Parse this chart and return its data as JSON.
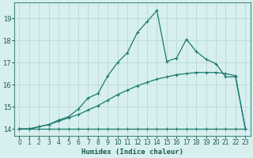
{
  "xlabel": "Humidex (Indice chaleur)",
  "bg_color": "#d7efef",
  "grid_color": "#b8d8d8",
  "line_color": "#1a7a6e",
  "xlim": [
    -0.5,
    23.5
  ],
  "ylim": [
    13.7,
    19.7
  ],
  "yticks": [
    14,
    15,
    16,
    17,
    18,
    19
  ],
  "xticks": [
    0,
    1,
    2,
    3,
    4,
    5,
    6,
    7,
    8,
    9,
    10,
    11,
    12,
    13,
    14,
    15,
    16,
    17,
    18,
    19,
    20,
    21,
    22,
    23
  ],
  "line1_x": [
    0,
    1,
    2,
    3,
    4,
    5,
    6,
    7,
    8,
    9,
    10,
    11,
    12,
    13,
    14,
    15,
    16,
    17,
    18,
    19,
    20,
    21,
    22,
    23
  ],
  "line1_y": [
    14.0,
    14.0,
    14.0,
    14.0,
    14.0,
    14.0,
    14.0,
    14.0,
    14.0,
    14.0,
    14.0,
    14.0,
    14.0,
    14.0,
    14.0,
    14.0,
    14.0,
    14.0,
    14.0,
    14.0,
    14.0,
    14.0,
    14.0,
    14.0
  ],
  "line2_x": [
    0,
    1,
    2,
    3,
    4,
    5,
    6,
    7,
    8,
    9,
    10,
    11,
    12,
    13,
    14,
    15,
    16,
    17,
    18,
    19,
    20,
    21,
    22,
    23
  ],
  "line2_y": [
    14.0,
    14.0,
    14.1,
    14.2,
    14.35,
    14.5,
    14.65,
    14.85,
    15.05,
    15.3,
    15.55,
    15.75,
    15.95,
    16.1,
    16.25,
    16.35,
    16.45,
    16.5,
    16.55,
    16.55,
    16.55,
    16.5,
    16.4,
    14.0
  ],
  "line3_x": [
    0,
    1,
    2,
    3,
    4,
    5,
    6,
    7,
    8,
    9,
    10,
    11,
    12,
    13,
    14,
    15,
    16,
    17,
    18,
    19,
    20,
    21,
    22,
    23
  ],
  "line3_y": [
    14.0,
    14.0,
    14.1,
    14.2,
    14.4,
    14.55,
    14.9,
    15.4,
    15.6,
    16.4,
    17.0,
    17.45,
    18.35,
    18.85,
    19.35,
    17.05,
    17.2,
    18.05,
    17.5,
    17.15,
    16.95,
    16.35,
    16.35,
    14.0
  ]
}
